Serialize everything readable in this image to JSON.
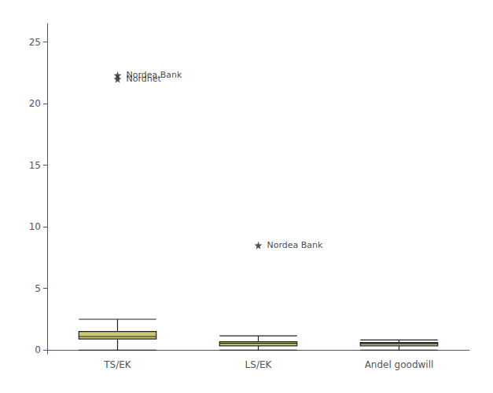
{
  "chart_data": {
    "type": "box",
    "categories": [
      "TS/EK",
      "LS/EK",
      "Andel goodwill"
    ],
    "boxes": [
      {
        "low": 0.0,
        "q1": 0.9,
        "median": 1.1,
        "q3": 1.5,
        "high": 2.5
      },
      {
        "low": 0.0,
        "q1": 0.35,
        "median": 0.55,
        "q3": 0.68,
        "high": 1.15
      },
      {
        "low": 0.0,
        "q1": 0.35,
        "median": 0.52,
        "q3": 0.62,
        "high": 0.82
      }
    ],
    "outliers": [
      {
        "category": "TS/EK",
        "value": 22.3,
        "label": "Nordea Bank"
      },
      {
        "category": "TS/EK",
        "value": 22.0,
        "label": "Nordnet"
      },
      {
        "category": "LS/EK",
        "value": 8.5,
        "label": "Nordea Bank"
      }
    ],
    "color": "#c8c870",
    "marker": "star",
    "ylim": [
      -0.3,
      26.5
    ],
    "yticks": [
      0,
      5,
      10,
      15,
      20,
      25
    ],
    "grid": false
  }
}
